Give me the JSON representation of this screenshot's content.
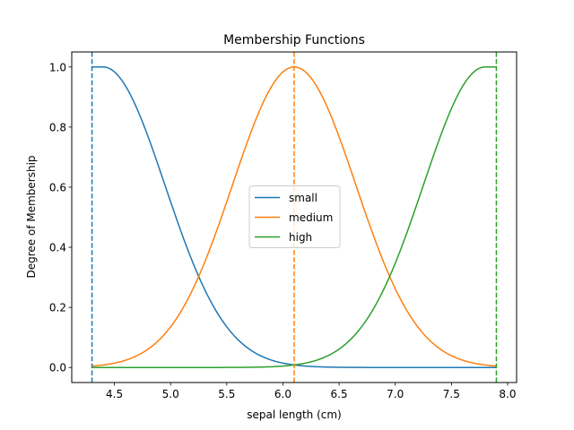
{
  "chart_data": {
    "type": "line",
    "title": "Membership Functions",
    "xlabel": "sepal length (cm)",
    "ylabel": "Degree of Membership",
    "xlim": [
      4.12,
      8.08
    ],
    "ylim": [
      -0.05,
      1.05
    ],
    "x_ticks": [
      "4.5",
      "5.0",
      "5.5",
      "6.0",
      "6.5",
      "7.0",
      "7.5",
      "8.0"
    ],
    "y_ticks": [
      "0.0",
      "0.2",
      "0.4",
      "0.6",
      "0.8",
      "1.0"
    ],
    "grid": false,
    "legend_position": "center",
    "series": [
      {
        "name": "small",
        "color": "#1f77b4",
        "shape": "gaussian",
        "center": 4.3,
        "sigma": 0.55,
        "plateau_until": 4.4,
        "x_range": [
          4.3,
          7.9
        ],
        "vline_x": 4.3
      },
      {
        "name": "medium",
        "color": "#ff7f0e",
        "shape": "gaussian",
        "center": 6.1,
        "sigma": 0.55,
        "x_range": [
          4.3,
          7.9
        ],
        "vline_x": 6.1
      },
      {
        "name": "high",
        "color": "#2ca02c",
        "shape": "gaussian",
        "center": 7.9,
        "sigma": 0.55,
        "plateau_from": 7.8,
        "x_range": [
          4.3,
          7.9
        ],
        "vline_x": 7.9
      }
    ]
  }
}
